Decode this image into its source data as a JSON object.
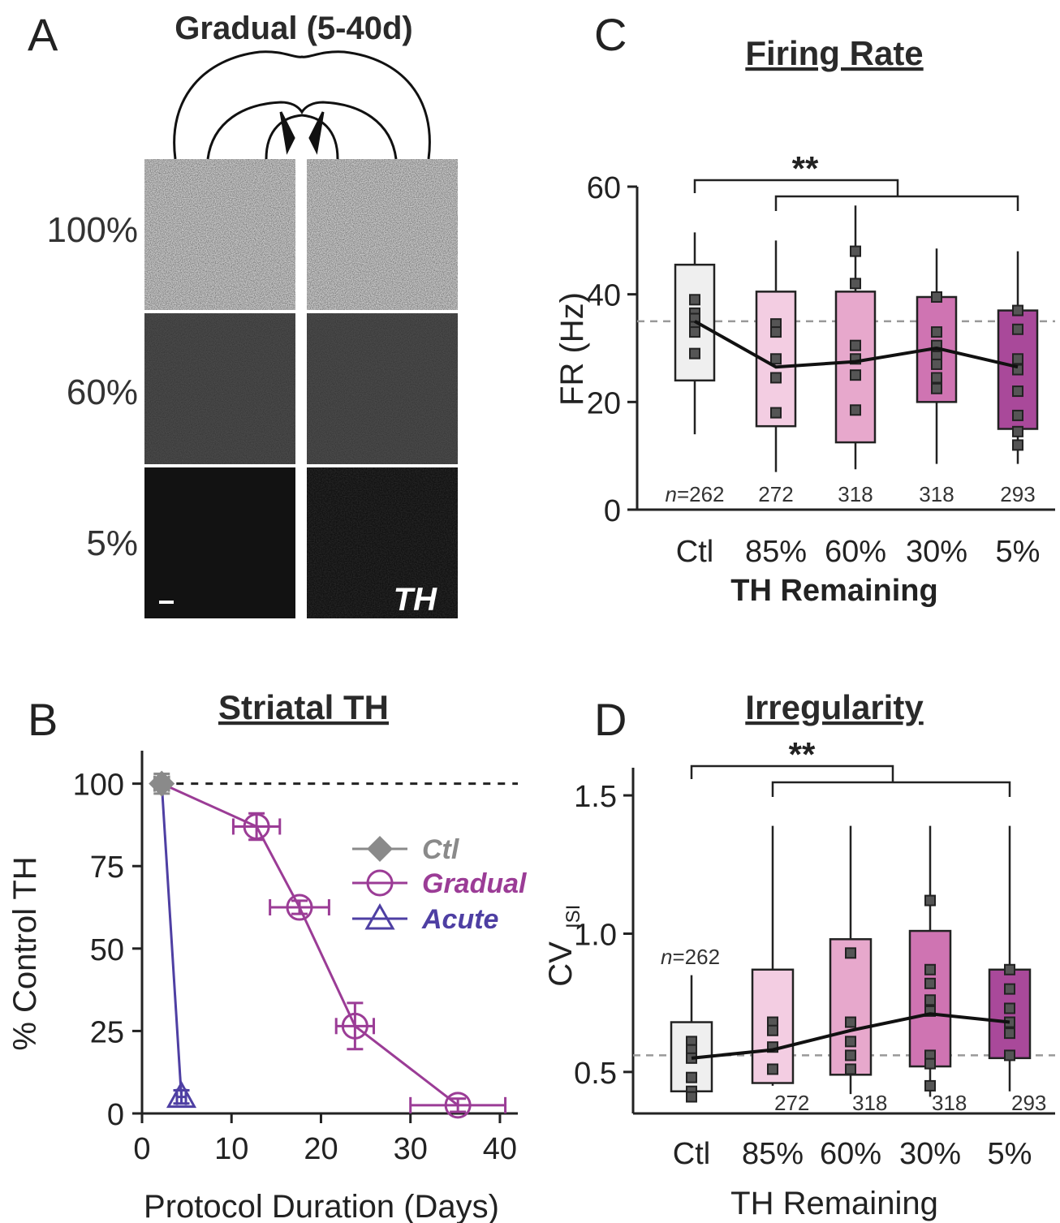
{
  "panelA": {
    "letter": "A",
    "title": "Gradual (5-40d)",
    "row_labels": [
      "100%",
      "60%",
      "5%"
    ],
    "stain_label": "TH",
    "row_gray": [
      "#c8c8c8",
      "#4a4a4a",
      "#121212"
    ]
  },
  "chart_data": [
    {
      "id": "B",
      "letter": "B",
      "type": "line",
      "title": "Striatal TH",
      "xlabel": "Protocol Duration (Days)",
      "ylabel": "% Control TH",
      "xlim": [
        0,
        42
      ],
      "ylim": [
        0,
        110
      ],
      "xticks": [
        0,
        10,
        20,
        30,
        40
      ],
      "yticks": [
        0,
        25,
        50,
        75,
        100
      ],
      "reference_line": 100,
      "legend_position": "center-right",
      "series": [
        {
          "name": "Ctl",
          "color": "#8a8a8a",
          "marker": "diamond",
          "points": [
            {
              "x": 2.2,
              "y": 100,
              "xerr": 0.8,
              "yerr": 3
            }
          ]
        },
        {
          "name": "Gradual",
          "color": "#9b3c96",
          "marker": "circle",
          "points": [
            {
              "x": 2.2,
              "y": 100,
              "xerr": 0,
              "yerr": 0
            },
            {
              "x": 12.8,
              "y": 87,
              "xerr": 2.6,
              "yerr": 4
            },
            {
              "x": 17.6,
              "y": 62.5,
              "xerr": 3.3,
              "yerr": 2
            },
            {
              "x": 23.8,
              "y": 26.5,
              "xerr": 2.1,
              "yerr": 7
            },
            {
              "x": 35.3,
              "y": 2.5,
              "xerr": 5.3,
              "yerr": 2
            }
          ]
        },
        {
          "name": "Acute",
          "color": "#4e3fa3",
          "marker": "triangle",
          "points": [
            {
              "x": 2.2,
              "y": 100,
              "xerr": 0,
              "yerr": 0
            },
            {
              "x": 4.4,
              "y": 5,
              "xerr": 0.5,
              "yerr": 2
            }
          ]
        }
      ]
    },
    {
      "id": "C",
      "letter": "C",
      "type": "box",
      "title": "Firing Rate",
      "xlabel": "TH Remaining",
      "ylabel": "FR (Hz)",
      "ylim": [
        0,
        60
      ],
      "yticks": [
        0,
        20,
        40,
        60
      ],
      "categories": [
        "Ctl",
        "85%",
        "60%",
        "30%",
        "5%"
      ],
      "n_labels": [
        "n=262",
        "272",
        "318",
        "318",
        "293"
      ],
      "significance": "**",
      "reference_line": 35,
      "colors": [
        "#efefef",
        "#f3cde2",
        "#e7a8cc",
        "#cf74b2",
        "#a9499a"
      ],
      "boxes": [
        {
          "whisker_low": 14,
          "q1": 24,
          "median": 35,
          "q3": 45.5,
          "whisker_high": 51.5,
          "points": [
            39,
            36.5,
            35.5,
            34,
            33,
            29
          ]
        },
        {
          "whisker_low": 7,
          "q1": 15.5,
          "median": 26.5,
          "q3": 40.5,
          "whisker_high": 50,
          "points": [
            34.5,
            33,
            28,
            24.5,
            18
          ]
        },
        {
          "whisker_low": 7.5,
          "q1": 12.5,
          "median": 27.5,
          "q3": 40.5,
          "whisker_high": 56.5,
          "points": [
            48,
            42,
            30.5,
            28,
            25,
            18.5
          ]
        },
        {
          "whisker_low": 8.5,
          "q1": 20,
          "median": 30,
          "q3": 39.5,
          "whisker_high": 48.5,
          "points": [
            39.5,
            33,
            30.5,
            28.5,
            27,
            24.5,
            22.5
          ]
        },
        {
          "whisker_low": 8.5,
          "q1": 15,
          "median": 26.5,
          "q3": 37,
          "whisker_high": 48,
          "points": [
            37,
            33.5,
            28,
            26,
            22,
            17.5,
            14.5,
            12
          ]
        }
      ]
    },
    {
      "id": "D",
      "letter": "D",
      "type": "box",
      "title": "Irregularity",
      "xlabel": "TH Remaining",
      "ylabel": "CV",
      "ylabel_sub": "ISI",
      "ylim": [
        0.35,
        1.6
      ],
      "yticks": [
        0.5,
        1.0,
        1.5
      ],
      "ytick_labels": [
        "0.5",
        "1.0",
        "1.5"
      ],
      "categories": [
        "Ctl",
        "85%",
        "60%",
        "30%",
        "5%"
      ],
      "n_labels": [
        "n=262",
        "272",
        "318",
        "318",
        "293"
      ],
      "significance": "**",
      "reference_line": 0.56,
      "colors": [
        "#efefef",
        "#f3cde2",
        "#e7a8cc",
        "#cf74b2",
        "#a9499a"
      ],
      "boxes": [
        {
          "whisker_low": 0.41,
          "q1": 0.43,
          "median": 0.55,
          "q3": 0.68,
          "whisker_high": 0.85,
          "points": [
            0.61,
            0.58,
            0.55,
            0.48,
            0.43,
            0.41
          ]
        },
        {
          "whisker_low": 0.45,
          "q1": 0.46,
          "median": 0.58,
          "q3": 0.87,
          "whisker_high": 1.39,
          "points": [
            0.68,
            0.65,
            0.59,
            0.51
          ]
        },
        {
          "whisker_low": 0.42,
          "q1": 0.49,
          "median": 0.65,
          "q3": 0.98,
          "whisker_high": 1.39,
          "points": [
            0.93,
            0.68,
            0.61,
            0.56,
            0.51
          ]
        },
        {
          "whisker_low": 0.41,
          "q1": 0.52,
          "median": 0.71,
          "q3": 1.01,
          "whisker_high": 1.39,
          "points": [
            1.12,
            0.87,
            0.82,
            0.76,
            0.72,
            0.56,
            0.53,
            0.45
          ]
        },
        {
          "whisker_low": 0.43,
          "q1": 0.55,
          "median": 0.68,
          "q3": 0.87,
          "whisker_high": 1.39,
          "points": [
            0.87,
            0.8,
            0.73,
            0.68,
            0.64,
            0.56
          ]
        }
      ]
    }
  ]
}
